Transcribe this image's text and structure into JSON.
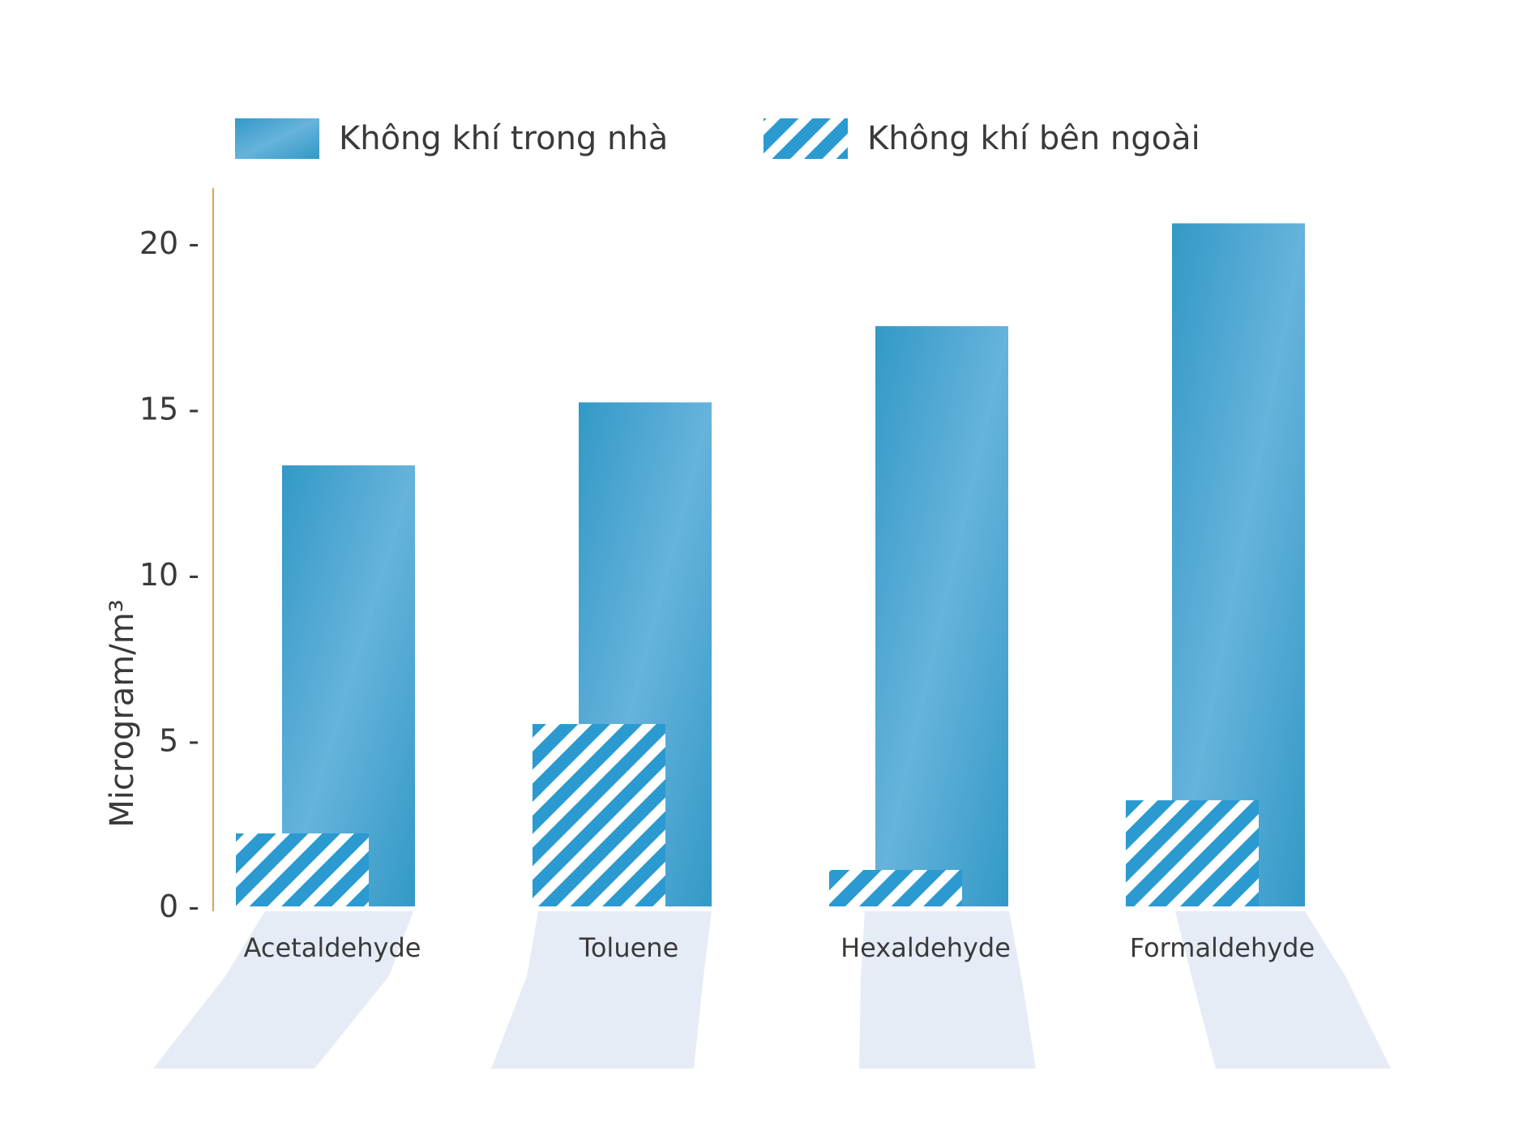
{
  "colors": {
    "bar_dark": "#3399c6",
    "bar_light": "#66b3dc",
    "hatch": "#2b9ad0",
    "axis": "#e0a050",
    "floor": "#e6ecf6",
    "text": "#3a3a3c",
    "highlight": "#e3202c"
  },
  "chart_data": {
    "type": "bar",
    "categories": [
      "Acetaldehyde",
      "Toluene",
      "Hexaldehyde",
      "Formaldehyde"
    ],
    "highlighted_category": "Formaldehyde",
    "series": [
      {
        "name": "Không khí trong nhà",
        "style": "solid",
        "values": [
          13.3,
          15.2,
          17.5,
          20.6
        ]
      },
      {
        "name": "Không khí bên ngoài",
        "style": "hatched",
        "values": [
          2.2,
          5.5,
          1.1,
          3.2
        ]
      }
    ],
    "ylabel": "Microgram/m³",
    "ylim": [
      0,
      20
    ],
    "yticks": [
      "0",
      "5",
      "10",
      "15",
      "20"
    ],
    "legend_position": "top",
    "grid": false
  }
}
